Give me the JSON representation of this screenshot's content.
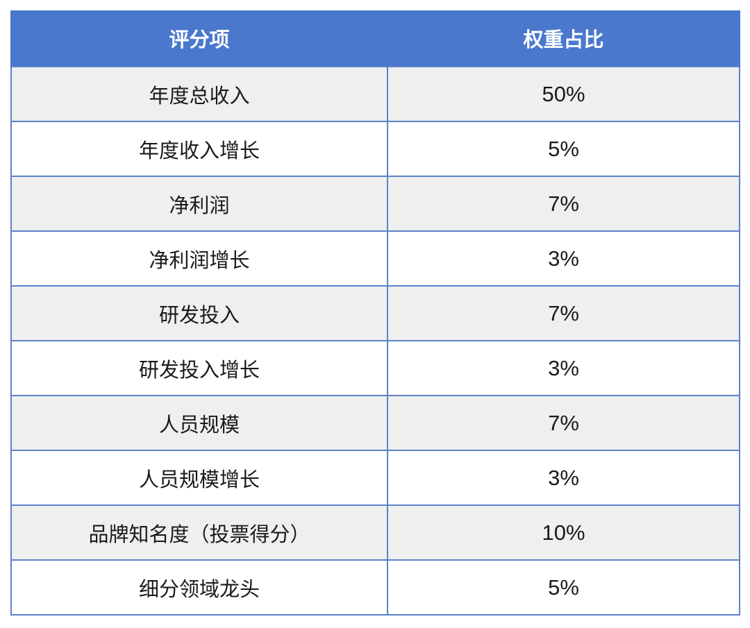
{
  "table": {
    "headers": [
      "评分项",
      "权重占比"
    ],
    "rows": [
      {
        "item": "年度总收入",
        "weight": "50%"
      },
      {
        "item": "年度收入增长",
        "weight": "5%"
      },
      {
        "item": "净利润",
        "weight": "7%"
      },
      {
        "item": "净利润增长",
        "weight": "3%"
      },
      {
        "item": "研发投入",
        "weight": "7%"
      },
      {
        "item": "研发投入增长",
        "weight": "3%"
      },
      {
        "item": "人员规模",
        "weight": "7%"
      },
      {
        "item": "人员规模增长",
        "weight": "3%"
      },
      {
        "item": "品牌知名度（投票得分）",
        "weight": "10%"
      },
      {
        "item": "细分领域龙头",
        "weight": "5%"
      }
    ]
  },
  "colors": {
    "header_bg": "#4a78cc",
    "border": "#5b82c8",
    "row_alt_bg": "#efefef"
  }
}
